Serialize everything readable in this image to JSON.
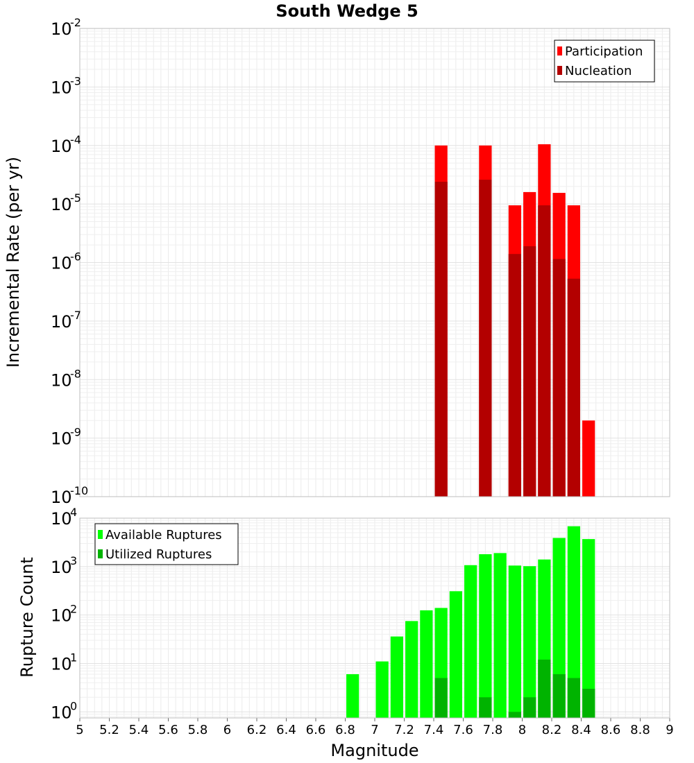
{
  "chart_data": {
    "title": "South Wedge 5",
    "xlabel": "Magnitude",
    "xlim": [
      5,
      9
    ],
    "x_ticks": [
      "5",
      "5.2",
      "5.4",
      "5.6",
      "5.8",
      "6",
      "6.2",
      "6.4",
      "6.6",
      "6.8",
      "7",
      "7.2",
      "7.4",
      "7.6",
      "7.8",
      "8",
      "8.2",
      "8.4",
      "8.6",
      "8.8",
      "9"
    ],
    "bin_width": 0.1,
    "grid": true,
    "panels": [
      {
        "type": "bar",
        "y_scale": "log",
        "ylabel": "Incremental Rate (per yr)",
        "ylim": [
          1e-10,
          0.01
        ],
        "y_tick_exponents": [
          "-10",
          "-9",
          "-8",
          "-7",
          "-6",
          "-5",
          "-4",
          "-3",
          "-2"
        ],
        "legend_position": "top-right",
        "series": [
          {
            "name": "Participation",
            "color": "#ff0000",
            "points": [
              {
                "x": 7.45,
                "y": 0.0001
              },
              {
                "x": 7.75,
                "y": 0.0001
              },
              {
                "x": 7.95,
                "y": 9.5e-06
              },
              {
                "x": 8.05,
                "y": 1.6e-05
              },
              {
                "x": 8.15,
                "y": 0.000105
              },
              {
                "x": 8.25,
                "y": 1.55e-05
              },
              {
                "x": 8.35,
                "y": 9.5e-06
              },
              {
                "x": 8.45,
                "y": 2e-09
              }
            ]
          },
          {
            "name": "Nucleation",
            "color": "#b30000",
            "points": [
              {
                "x": 7.45,
                "y": 2.4e-05
              },
              {
                "x": 7.75,
                "y": 2.6e-05
              },
              {
                "x": 7.95,
                "y": 1.4e-06
              },
              {
                "x": 8.05,
                "y": 1.9e-06
              },
              {
                "x": 8.15,
                "y": 9.5e-06
              },
              {
                "x": 8.25,
                "y": 1.15e-06
              },
              {
                "x": 8.35,
                "y": 5.3e-07
              }
            ]
          }
        ]
      },
      {
        "type": "bar",
        "y_scale": "log",
        "ylabel": "Rupture Count",
        "ylim": [
          0.75,
          10000
        ],
        "y_tick_exponents": [
          "0",
          "1",
          "2",
          "3",
          "4"
        ],
        "legend_position": "top-left",
        "series": [
          {
            "name": "Available Ruptures",
            "color": "#00ff00",
            "points": [
              {
                "x": 6.85,
                "y": 6
              },
              {
                "x": 7.05,
                "y": 11
              },
              {
                "x": 7.15,
                "y": 36
              },
              {
                "x": 7.25,
                "y": 75
              },
              {
                "x": 7.35,
                "y": 125
              },
              {
                "x": 7.45,
                "y": 140
              },
              {
                "x": 7.55,
                "y": 310
              },
              {
                "x": 7.65,
                "y": 1070
              },
              {
                "x": 7.75,
                "y": 1800
              },
              {
                "x": 7.85,
                "y": 1900
              },
              {
                "x": 7.95,
                "y": 1050
              },
              {
                "x": 8.05,
                "y": 1020
              },
              {
                "x": 8.15,
                "y": 1400
              },
              {
                "x": 8.25,
                "y": 3900
              },
              {
                "x": 8.35,
                "y": 6800
              },
              {
                "x": 8.45,
                "y": 3700
              }
            ]
          },
          {
            "name": "Utilized Ruptures",
            "color": "#00b300",
            "points": [
              {
                "x": 7.45,
                "y": 5
              },
              {
                "x": 7.75,
                "y": 2
              },
              {
                "x": 7.95,
                "y": 1
              },
              {
                "x": 8.05,
                "y": 2
              },
              {
                "x": 8.15,
                "y": 12
              },
              {
                "x": 8.25,
                "y": 6
              },
              {
                "x": 8.35,
                "y": 5
              },
              {
                "x": 8.45,
                "y": 3
              }
            ]
          }
        ]
      }
    ]
  }
}
